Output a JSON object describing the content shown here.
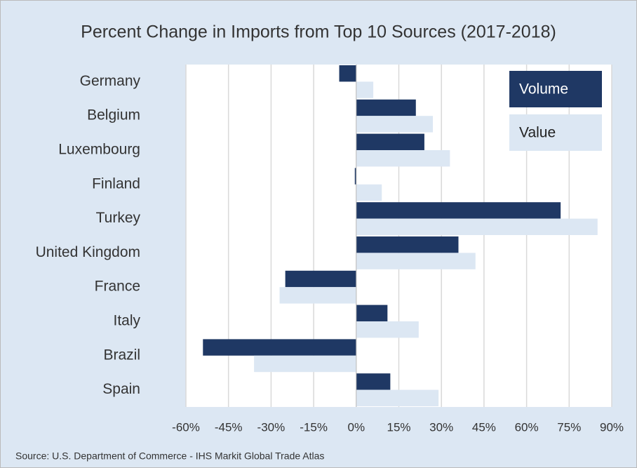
{
  "chart_data": {
    "type": "barh",
    "title": "Percent Change in Imports from Top 10 Sources (2017-2018)",
    "categories": [
      "Germany",
      "Belgium",
      "Luxembourg",
      "Finland",
      "Turkey",
      "United Kingdom",
      "France",
      "Italy",
      "Brazil",
      "Spain"
    ],
    "series": [
      {
        "name": "Volume",
        "color": "#1f3864",
        "values": [
          -6,
          21,
          24,
          -0.5,
          72,
          36,
          -25,
          11,
          -54,
          12
        ]
      },
      {
        "name": "Value",
        "color": "#dce7f3",
        "values": [
          6,
          27,
          33,
          9,
          85,
          42,
          -27,
          22,
          -36,
          29
        ]
      }
    ],
    "xlim": [
      -60,
      90
    ],
    "xticks": [
      {
        "value": -60,
        "label": "-60%"
      },
      {
        "value": -45,
        "label": "-45%"
      },
      {
        "value": -30,
        "label": "-30%"
      },
      {
        "value": -15,
        "label": "-15%"
      },
      {
        "value": 0,
        "label": "0%"
      },
      {
        "value": 15,
        "label": "15%"
      },
      {
        "value": 30,
        "label": "30%"
      },
      {
        "value": 45,
        "label": "45%"
      },
      {
        "value": 60,
        "label": "60%"
      },
      {
        "value": 75,
        "label": "75%"
      },
      {
        "value": 90,
        "label": "90%"
      }
    ],
    "grid": true,
    "legend": "top-right",
    "source": "Source: U.S. Department of Commerce - IHS Markit Global Trade Atlas"
  }
}
